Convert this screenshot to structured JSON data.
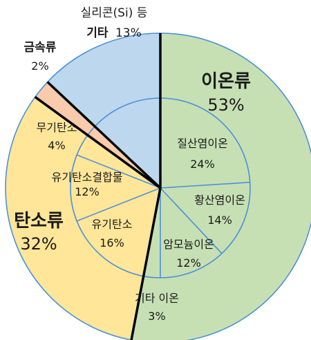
{
  "chart_data": {
    "type": "pie",
    "inner_labels_shown": true,
    "outer": [
      {
        "name": "이온류",
        "value": 53,
        "label": "53%",
        "color": "#c6e0b4"
      },
      {
        "name": "탄소류",
        "value": 32,
        "label": "32%",
        "color": "#ffe699"
      },
      {
        "name": "금속류",
        "value": 2,
        "label": "2%",
        "color": "#f8cbad"
      },
      {
        "name": "기타",
        "value": 13,
        "label": "13%",
        "color": "#bdd7ee",
        "note": "실리콘(Si) 등"
      }
    ],
    "inner": [
      {
        "name": "질산염이온",
        "value": 24,
        "label": "24%",
        "group": "이온류"
      },
      {
        "name": "황산염이온",
        "value": 14,
        "label": "14%",
        "group": "이온류"
      },
      {
        "name": "암모늄이온",
        "value": 12,
        "label": "12%",
        "group": "이온류"
      },
      {
        "name": "기타 이온",
        "value": 3,
        "label": "3%",
        "group": "이온류"
      },
      {
        "name": "유기탄소",
        "value": 16,
        "label": "16%",
        "group": "탄소류"
      },
      {
        "name": "유기탄소결합물",
        "value": 12,
        "label": "12%",
        "group": "탄소류"
      },
      {
        "name": "무기탄소",
        "value": 4,
        "label": "4%",
        "group": "탄소류"
      }
    ]
  }
}
